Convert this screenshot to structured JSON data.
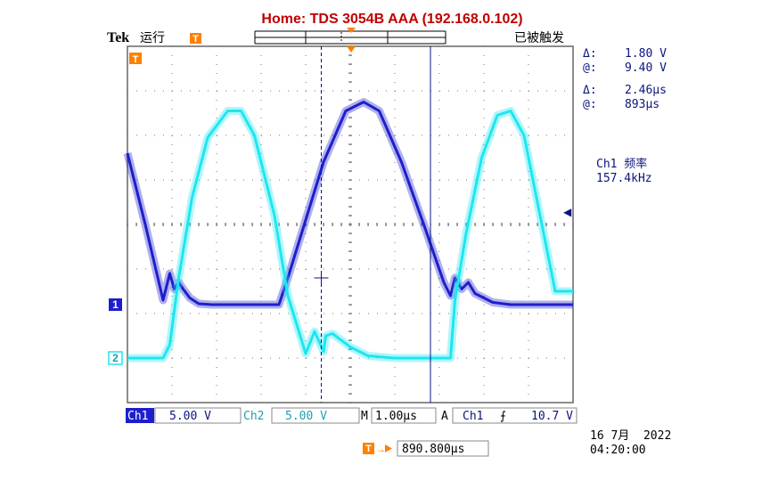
{
  "header": {
    "title": "Home:  TDS 3054B  AAA  (192.168.0.102)",
    "brand": "Tek",
    "run_state": "运行",
    "trigger_status": "已被触发"
  },
  "cursors": {
    "volt_delta": "Δ:    1.80 V",
    "volt_at": "@:    9.40 V",
    "time_delta": "Δ:    2.46µs",
    "time_at": "@:    893µs"
  },
  "measurement": {
    "label": "Ch1 频率",
    "value": "157.4kHz"
  },
  "markers": {
    "trigger_point": "T",
    "ch1": "1",
    "ch2": "2",
    "trigger_level": "◀"
  },
  "bottom_bar": {
    "ch1_label": "Ch1",
    "ch1_scale": "5.00 V",
    "ch2_label": "Ch2",
    "ch2_scale": "5.00 V",
    "m_label": "M",
    "timebase": "1.00µs",
    "a_label": "A",
    "trig_source": "Ch1",
    "trig_slope": "⨍",
    "trig_level": "10.7 V"
  },
  "position": {
    "t_icon": "T",
    "arrow": "→",
    "value": "890.800µs"
  },
  "datetime": {
    "date": "16 7月  2022",
    "time": "04:20:00"
  },
  "colors": {
    "ch1": "#1e1ecc",
    "ch2": "#1ee6f0",
    "title": "#c00000",
    "trigger_marker": "#ff8000",
    "readout": "#0a1480",
    "cursor": "#0a1480"
  },
  "chart_data": {
    "type": "line",
    "x_unit": "µs",
    "y_unit": "V",
    "x_divisions": 10,
    "y_divisions": 8,
    "time_per_div": 1.0,
    "volts_per_div": 5.0,
    "grid": true,
    "series": [
      {
        "name": "Ch1",
        "color": "#1e1ecc",
        "ground_div": -1.8,
        "x_div": [
          0.0,
          0.4,
          0.8,
          0.95,
          1.05,
          1.15,
          1.25,
          1.4,
          1.6,
          1.9,
          2.5,
          3.0,
          3.4,
          3.6,
          4.4,
          4.9,
          5.3,
          5.65,
          6.15,
          6.65,
          7.1,
          7.25,
          7.35,
          7.5,
          7.65,
          7.8,
          8.2,
          8.6,
          9.0,
          9.5,
          10.0
        ],
        "y_div": [
          1.6,
          0.0,
          -1.7,
          -1.1,
          -1.45,
          -1.3,
          -1.45,
          -1.65,
          -1.78,
          -1.8,
          -1.8,
          -1.8,
          -1.8,
          -1.2,
          1.4,
          2.55,
          2.75,
          2.55,
          1.4,
          0.0,
          -1.3,
          -1.6,
          -1.2,
          -1.45,
          -1.3,
          -1.55,
          -1.75,
          -1.8,
          -1.8,
          -1.8,
          -1.8
        ]
      },
      {
        "name": "Ch2",
        "color": "#1ee6f0",
        "ground_div": -3.0,
        "x_div": [
          0.0,
          0.8,
          0.95,
          1.15,
          1.45,
          1.8,
          2.25,
          2.55,
          2.85,
          3.3,
          3.6,
          4.0,
          4.2,
          4.4,
          4.45,
          4.6,
          5.0,
          5.4,
          6.0,
          7.0,
          7.25,
          7.35,
          7.6,
          7.95,
          8.3,
          8.6,
          8.9,
          9.3,
          9.6,
          10.0
        ],
        "y_div": [
          -3.0,
          -3.0,
          -2.7,
          -1.2,
          0.6,
          1.95,
          2.55,
          2.55,
          2.0,
          0.2,
          -1.6,
          -2.9,
          -2.4,
          -2.85,
          -2.5,
          -2.45,
          -2.75,
          -2.95,
          -3.0,
          -3.0,
          -3.0,
          -1.7,
          -0.2,
          1.5,
          2.45,
          2.55,
          2.0,
          0.0,
          -1.5,
          -1.5
        ]
      }
    ],
    "cursors": {
      "vertical_a_div": 4.35,
      "vertical_b_div": 6.8,
      "horizontal_a_div": -1.2
    },
    "trigger_level_div": 0.28,
    "trigger_position_div": 5.0
  }
}
